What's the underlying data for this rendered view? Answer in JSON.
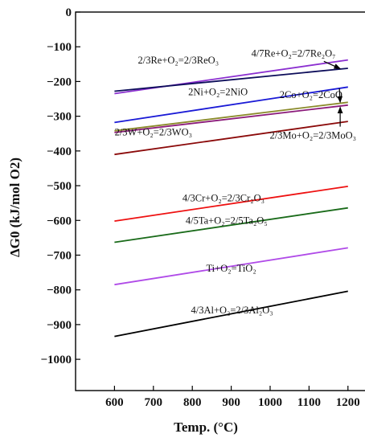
{
  "chart_data": {
    "type": "line",
    "xlabel": "Temp. (°C)",
    "ylabel": "ΔG0 (kJ/mol O2)",
    "xlim": [
      500,
      1250
    ],
    "ylim": [
      -1090,
      0
    ],
    "xticks": [
      600,
      700,
      800,
      900,
      1000,
      1100,
      1200
    ],
    "yticks": [
      0,
      -100,
      -200,
      -300,
      -400,
      -500,
      -600,
      -700,
      -800,
      -900,
      -1000
    ],
    "grid": false,
    "series": [
      {
        "label": "4/7Re+O₂=2/7Re₂O₇",
        "color": "#8b2fd0",
        "x": [
          600,
          1200
        ],
        "y": [
          -235,
          -138
        ]
      },
      {
        "label": "2/3Re+O₂=2/3ReO₃",
        "color": "#0d0d5a",
        "x": [
          600,
          1200
        ],
        "y": [
          -228,
          -162
        ]
      },
      {
        "label": "2Ni+O₂=2NiO",
        "color": "#1a1ad6",
        "x": [
          600,
          1200
        ],
        "y": [
          -318,
          -216
        ]
      },
      {
        "label": "2Co+O₂=2CoO",
        "color": "#8a8a2a",
        "x": [
          600,
          1200
        ],
        "y": [
          -342,
          -260
        ]
      },
      {
        "label": "2/3W+O₂=2/3WO₃",
        "color": "#8b1a7a",
        "x": [
          600,
          1200
        ],
        "y": [
          -347,
          -268
        ]
      },
      {
        "label": "2/3Mo+O₂=2/3MoO₃",
        "color": "#8b0a0a",
        "x": [
          600,
          1200
        ],
        "y": [
          -410,
          -315
        ]
      },
      {
        "label": "4/3Cr+O₂=2/3Cr₂O₃",
        "color": "#ee1111",
        "x": [
          600,
          1200
        ],
        "y": [
          -602,
          -502
        ]
      },
      {
        "label": "4/5Ta+O₂=2/5Ta₂O₅",
        "color": "#1a6b1a",
        "x": [
          600,
          1200
        ],
        "y": [
          -663,
          -564
        ]
      },
      {
        "label": "Ti+O₂=TiO₂",
        "color": "#b04be8",
        "x": [
          600,
          1200
        ],
        "y": [
          -785,
          -679
        ]
      },
      {
        "label": "4/3Al+O₂=2/3Al₂O₃",
        "color": "#000000",
        "x": [
          600,
          1200
        ],
        "y": [
          -934,
          -804
        ]
      }
    ],
    "annotations": [
      {
        "text": "4/7Re+O₂=2/7Re₂O₇",
        "x": 1060,
        "y": -128
      },
      {
        "text": "2/3Re+O₂=2/3ReO₃",
        "x": 764,
        "y": -148
      },
      {
        "text": "2Ni+O₂=2NiO",
        "x": 866,
        "y": -240
      },
      {
        "text": "2Co+O₂=2CoO",
        "x": 1105,
        "y": -248
      },
      {
        "text": "2/3W+O₂=2/3WO₃",
        "x": 700,
        "y": -355
      },
      {
        "text": "2/3Mo+O₂=2/3MoO₃",
        "x": 1110,
        "y": -365
      },
      {
        "text": "4/3Cr+O₂=2/3Cr₂O₃",
        "x": 880,
        "y": -545
      },
      {
        "text": "4/5Ta+O₂=2/5Ta₂O₅",
        "x": 888,
        "y": -610
      },
      {
        "text": "Ti+O₂=TiO₂",
        "x": 900,
        "y": -748
      },
      {
        "text": "4/3Al+O₂=2/3Al₂O₃",
        "x": 902,
        "y": -868
      }
    ],
    "arrows": [
      {
        "from": [
          1138,
          -142
        ],
        "to": [
          1180,
          -163
        ]
      },
      {
        "from": [
          1178,
          -220
        ],
        "to": [
          1180,
          -260
        ]
      },
      {
        "from": [
          1180,
          -330
        ],
        "to": [
          1180,
          -274
        ]
      }
    ]
  }
}
